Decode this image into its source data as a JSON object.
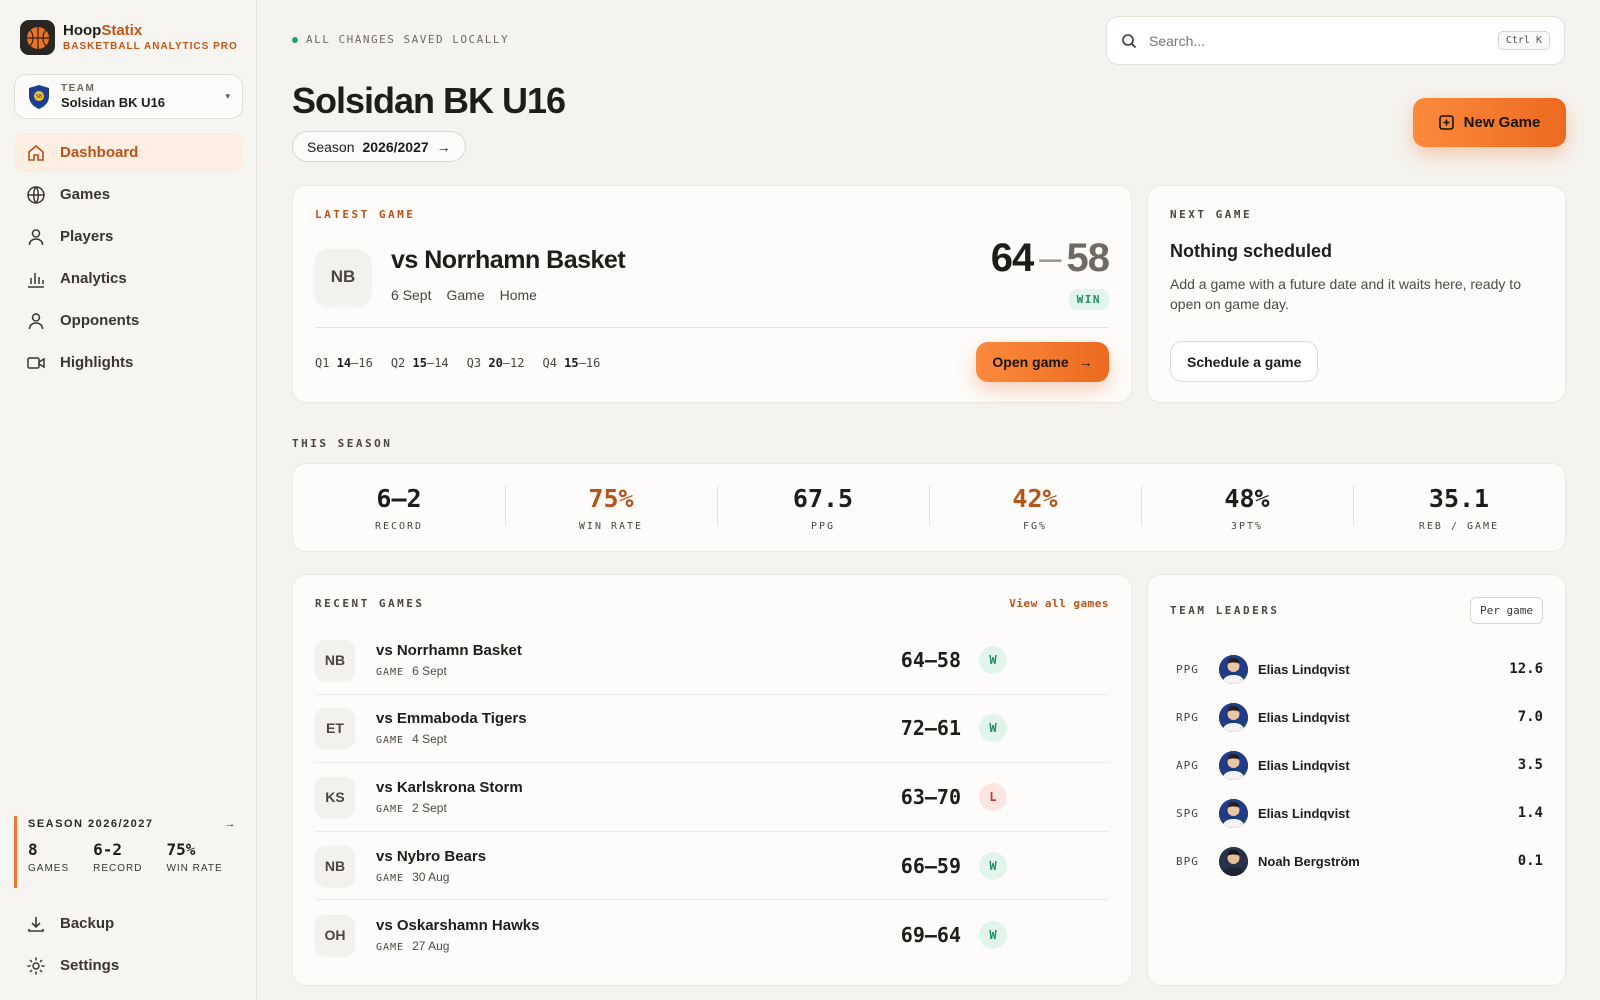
{
  "brand": {
    "name_a": "Hoop",
    "name_b": "Statix",
    "subtitle": "BASKETBALL ANALYTICS PRO"
  },
  "team_selector": {
    "label": "TEAM",
    "name": "Solsidan BK U16"
  },
  "nav": [
    {
      "label": "Dashboard",
      "icon": "home-icon",
      "active": true
    },
    {
      "label": "Games",
      "icon": "globe-icon"
    },
    {
      "label": "Players",
      "icon": "user-icon"
    },
    {
      "label": "Analytics",
      "icon": "bar-chart-icon"
    },
    {
      "label": "Opponents",
      "icon": "user-icon"
    },
    {
      "label": "Highlights",
      "icon": "video-icon"
    }
  ],
  "season_summary": {
    "title": "SEASON 2026/2027",
    "stats": [
      {
        "value": "8",
        "label": "GAMES"
      },
      {
        "value": "6-2",
        "label": "RECORD"
      },
      {
        "value": "75%",
        "label": "WIN RATE"
      }
    ]
  },
  "bottom_nav": [
    {
      "label": "Backup",
      "icon": "download-icon"
    },
    {
      "label": "Settings",
      "icon": "gear-icon"
    }
  ],
  "status": {
    "saved": "ALL CHANGES SAVED LOCALLY",
    "color": "#23a26b"
  },
  "search": {
    "placeholder": "Search...",
    "shortcut": "Ctrl K"
  },
  "header": {
    "title": "Solsidan BK U16",
    "season_label": "Season",
    "season_value": "2026/2027",
    "new_game": "New Game"
  },
  "latest_game": {
    "eyebrow": "LATEST GAME",
    "initials": "NB",
    "title": "vs Norrhamn Basket",
    "date": "6 Sept",
    "type": "Game",
    "venue": "Home",
    "score_for": "64",
    "score_dash": "–",
    "score_against": "58",
    "result": "WIN",
    "quarters": [
      {
        "q": "Q1",
        "for": "14",
        "against": "16"
      },
      {
        "q": "Q2",
        "for": "15",
        "against": "14"
      },
      {
        "q": "Q3",
        "for": "20",
        "against": "12"
      },
      {
        "q": "Q4",
        "for": "15",
        "against": "16"
      }
    ],
    "open_label": "Open game"
  },
  "next_game": {
    "eyebrow": "NEXT GAME",
    "title": "Nothing scheduled",
    "description": "Add a game with a future date and it waits here, ready to open on game day.",
    "button": "Schedule a game"
  },
  "this_season": {
    "label": "THIS SEASON",
    "stats": [
      {
        "value": "6–2",
        "label": "RECORD"
      },
      {
        "value": "75%",
        "label": "WIN RATE",
        "accent": true
      },
      {
        "value": "67.5",
        "label": "PPG"
      },
      {
        "value": "42%",
        "label": "FG%",
        "accent": true
      },
      {
        "value": "48%",
        "label": "3PT%"
      },
      {
        "value": "35.1",
        "label": "REB / GAME"
      }
    ]
  },
  "recent_games": {
    "label": "RECENT GAMES",
    "view_all": "View all games",
    "tag": "GAME",
    "games": [
      {
        "initials": "NB",
        "opponent": "vs Norrhamn Basket",
        "date": "6 Sept",
        "score": "64–58",
        "result": "W"
      },
      {
        "initials": "ET",
        "opponent": "vs Emmaboda Tigers",
        "date": "4 Sept",
        "score": "72–61",
        "result": "W"
      },
      {
        "initials": "KS",
        "opponent": "vs Karlskrona Storm",
        "date": "2 Sept",
        "score": "63–70",
        "result": "L"
      },
      {
        "initials": "NB",
        "opponent": "vs Nybro Bears",
        "date": "30 Aug",
        "score": "66–59",
        "result": "W"
      },
      {
        "initials": "OH",
        "opponent": "vs Oskarshamn Hawks",
        "date": "27 Aug",
        "score": "69–64",
        "result": "W"
      }
    ]
  },
  "team_leaders": {
    "label": "TEAM LEADERS",
    "toggle": "Per game",
    "leaders": [
      {
        "cat": "PPG",
        "name": "Elias Lindqvist",
        "value": "12.6"
      },
      {
        "cat": "RPG",
        "name": "Elias Lindqvist",
        "value": "7.0"
      },
      {
        "cat": "APG",
        "name": "Elias Lindqvist",
        "value": "3.5"
      },
      {
        "cat": "SPG",
        "name": "Elias Lindqvist",
        "value": "1.4"
      },
      {
        "cat": "BPG",
        "name": "Noah Bergström",
        "value": "0.1"
      }
    ]
  },
  "colors": {
    "accent": "#ef7a2f",
    "accent_text": "#b8541a",
    "win": "#1f8d5c",
    "loss": "#c23a32"
  }
}
